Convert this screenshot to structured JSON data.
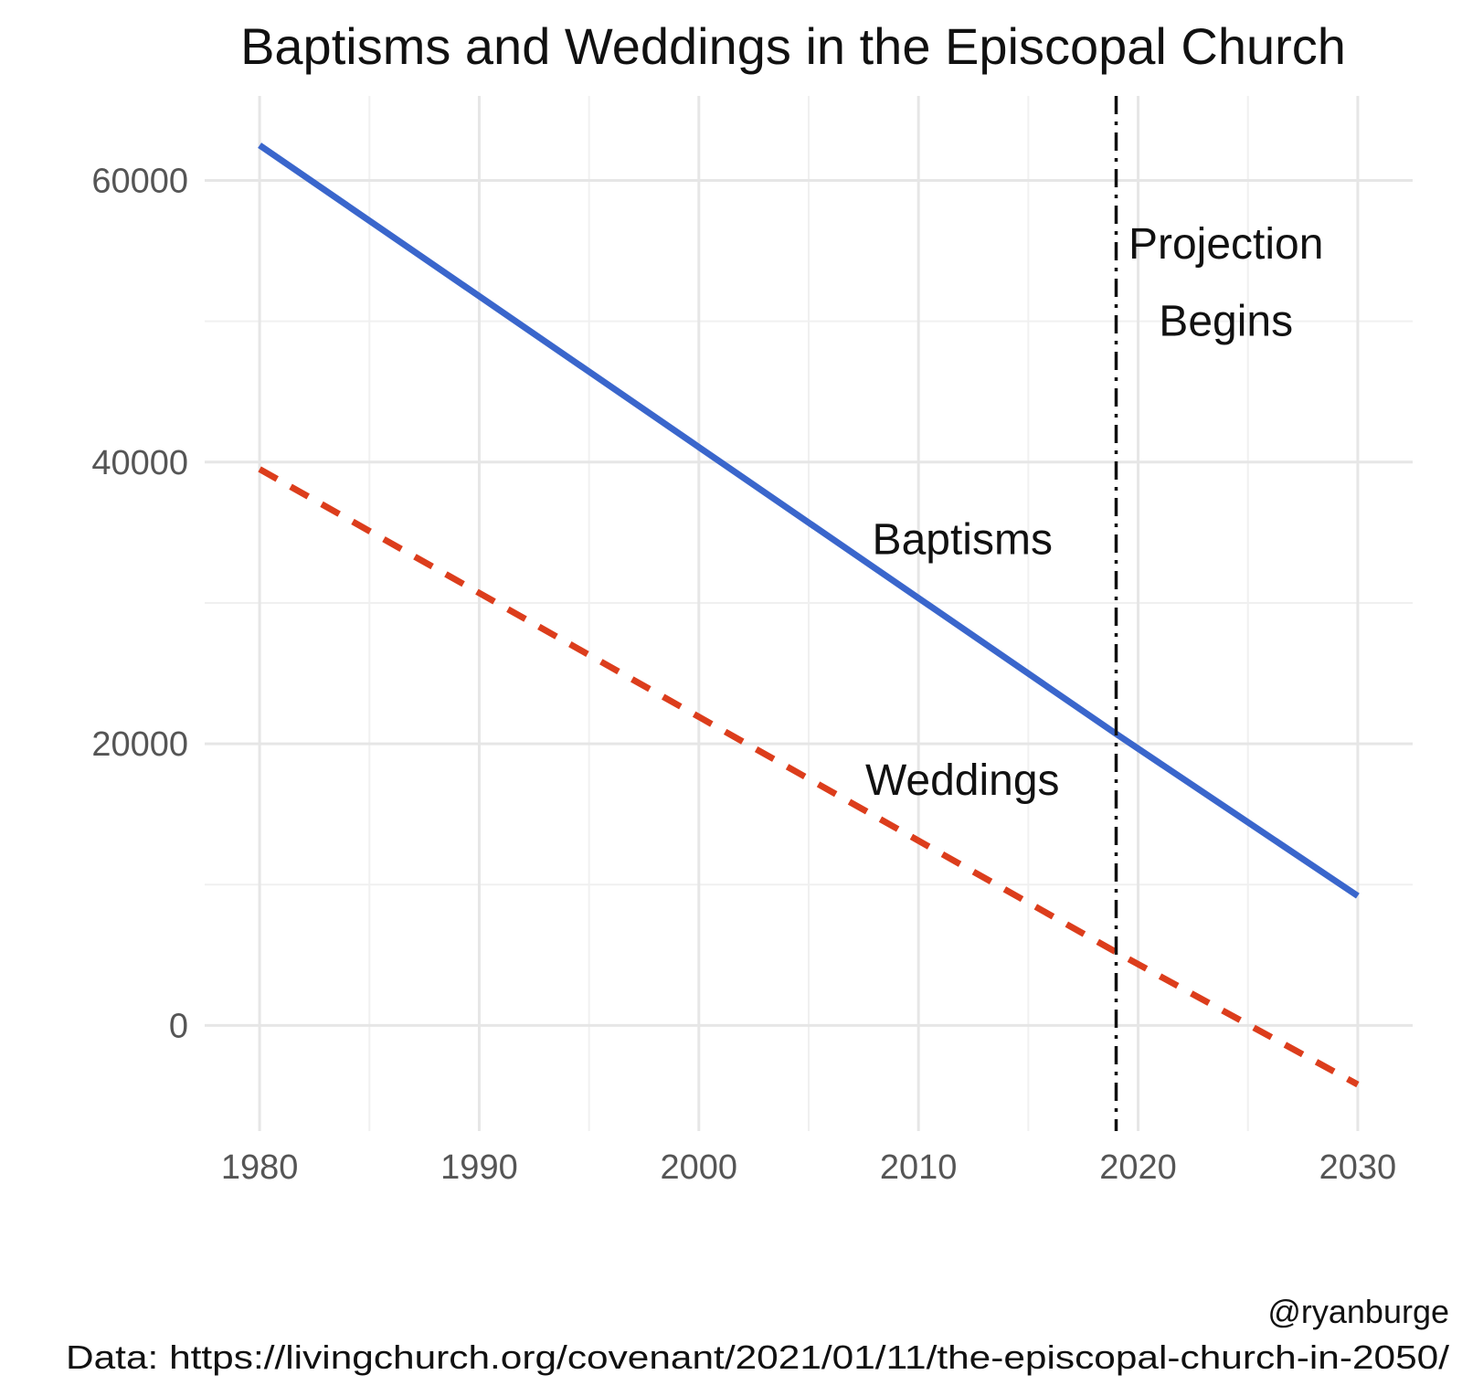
{
  "chart_data": {
    "type": "line",
    "title": "Baptisms and Weddings in the Episcopal Church",
    "xlabel": "",
    "ylabel": "",
    "xlim": [
      1977.5,
      2032.5
    ],
    "ylim": [
      -7500,
      66000
    ],
    "x_ticks": [
      1980,
      1990,
      2000,
      2010,
      2020,
      2030
    ],
    "y_ticks": [
      0,
      20000,
      40000,
      60000
    ],
    "x_minor_ticks": [
      1985,
      1995,
      2005,
      2015,
      2025
    ],
    "y_minor_ticks": [
      10000,
      30000,
      50000
    ],
    "grid": true,
    "series": [
      {
        "name": "Baptisms",
        "x": [
          1980,
          2019,
          2030
        ],
        "y": [
          62500,
          20700,
          9200
        ],
        "color": "#3a66cc",
        "line_style": "solid"
      },
      {
        "name": "Weddings",
        "x": [
          1980,
          2019,
          2030
        ],
        "y": [
          39500,
          5200,
          -4200
        ],
        "color": "#dc3d1c",
        "line_style": "dashed"
      }
    ],
    "vline": {
      "x": 2019,
      "color": "#111111",
      "line_style": "dotdash"
    },
    "annotations": [
      {
        "text": "Projection",
        "x": 2024,
        "y": 55500
      },
      {
        "text": "Begins",
        "x": 2024,
        "y": 50000
      },
      {
        "text": "Baptisms",
        "x": 2012,
        "y": 34500
      },
      {
        "text": "Weddings",
        "x": 2012,
        "y": 17400
      }
    ],
    "caption": [
      "@ryanburge",
      "Data: https://livingchurch.org/covenant/2021/01/11/the-episcopal-church-in-2050/"
    ]
  }
}
